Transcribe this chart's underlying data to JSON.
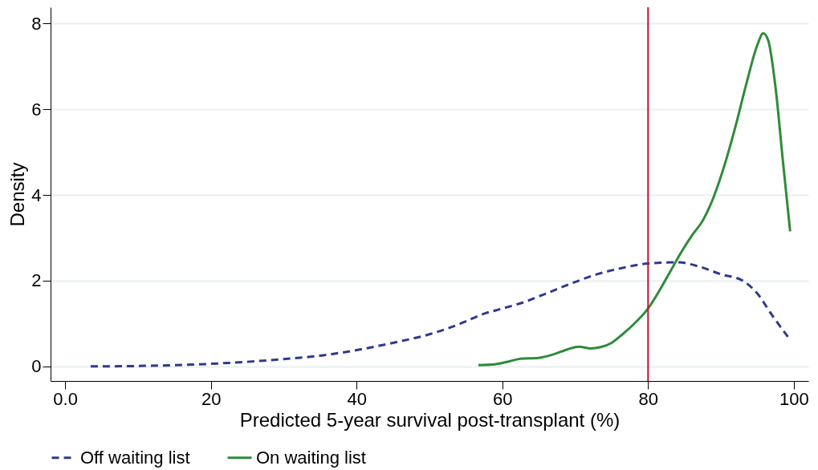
{
  "chart_data": {
    "type": "line",
    "xlabel": "Predicted 5-year survival post-transplant (%)",
    "ylabel": "Density",
    "xlim": [
      -2,
      102
    ],
    "ylim": [
      -0.34,
      8.38
    ],
    "xticks": [
      {
        "value": 0,
        "label": "0.0"
      },
      20,
      40,
      60,
      80,
      100
    ],
    "yticks": [
      0,
      2,
      4,
      6,
      8
    ],
    "grid": "y",
    "legend": "bottom",
    "series": [
      {
        "name": "Off waiting list",
        "color": "#2e3a8c",
        "line_style": "dashed",
        "x": [
          3.5,
          10,
          20,
          30,
          35,
          40,
          45,
          50,
          55,
          57,
          60,
          63,
          66,
          70,
          73,
          76,
          80,
          84,
          87,
          90,
          93,
          95,
          97,
          99.5
        ],
        "values": [
          0,
          0.01,
          0.06,
          0.17,
          0.25,
          0.38,
          0.55,
          0.75,
          1.05,
          1.2,
          1.35,
          1.5,
          1.7,
          1.97,
          2.15,
          2.28,
          2.4,
          2.43,
          2.33,
          2.15,
          2.0,
          1.7,
          1.2,
          0.62
        ]
      },
      {
        "name": "On waiting list",
        "color": "#2e8b3a",
        "line_style": "solid",
        "x": [
          56.7,
          59,
          61,
          62.5,
          65,
          67,
          69,
          70.5,
          72,
          73.5,
          75,
          76.5,
          78,
          80,
          81.5,
          83,
          84.5,
          86,
          87.5,
          89,
          90.5,
          92,
          93.5,
          95,
          95.8,
          96.5,
          97.5,
          98.5,
          99.5
        ],
        "values": [
          0.03,
          0.05,
          0.12,
          0.18,
          0.2,
          0.28,
          0.4,
          0.46,
          0.42,
          0.45,
          0.55,
          0.75,
          0.98,
          1.35,
          1.75,
          2.2,
          2.65,
          3.05,
          3.4,
          3.95,
          4.7,
          5.6,
          6.6,
          7.5,
          7.77,
          7.6,
          6.5,
          4.8,
          3.15
        ]
      }
    ],
    "ref_lines": [
      {
        "axis": "x",
        "value": 80,
        "color": "#c8102e"
      }
    ]
  }
}
